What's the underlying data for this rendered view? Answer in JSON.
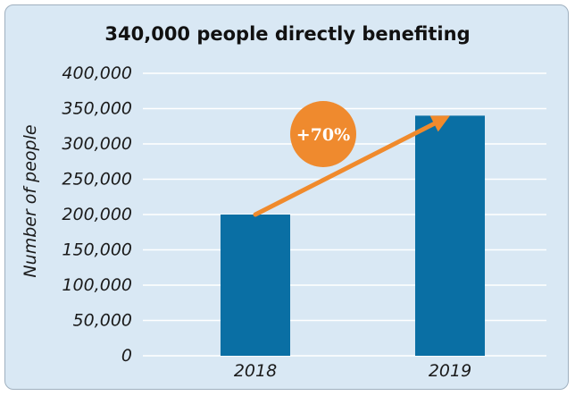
{
  "chart_data": {
    "type": "bar",
    "title": "340,000 people directly benefiting",
    "ylabel": "Number of people",
    "xlabel": "",
    "categories": [
      "2018",
      "2019"
    ],
    "values": [
      200000,
      340000
    ],
    "ylim": [
      0,
      400000
    ],
    "yticks": [
      "0",
      "50,000",
      "100,000",
      "150,000",
      "200,000",
      "250,000",
      "300,000",
      "350,000",
      "400,000"
    ],
    "grid": true,
    "legend": "none",
    "annotation": {
      "text": "+70%",
      "from_category": "2018",
      "to_category": "2019"
    },
    "colors": {
      "bar": "#0a6fa4",
      "arrow": "#f08a2c",
      "badge": "#ef8a2e",
      "background": "#d9e8f4",
      "gridline": "#ffffff"
    }
  }
}
